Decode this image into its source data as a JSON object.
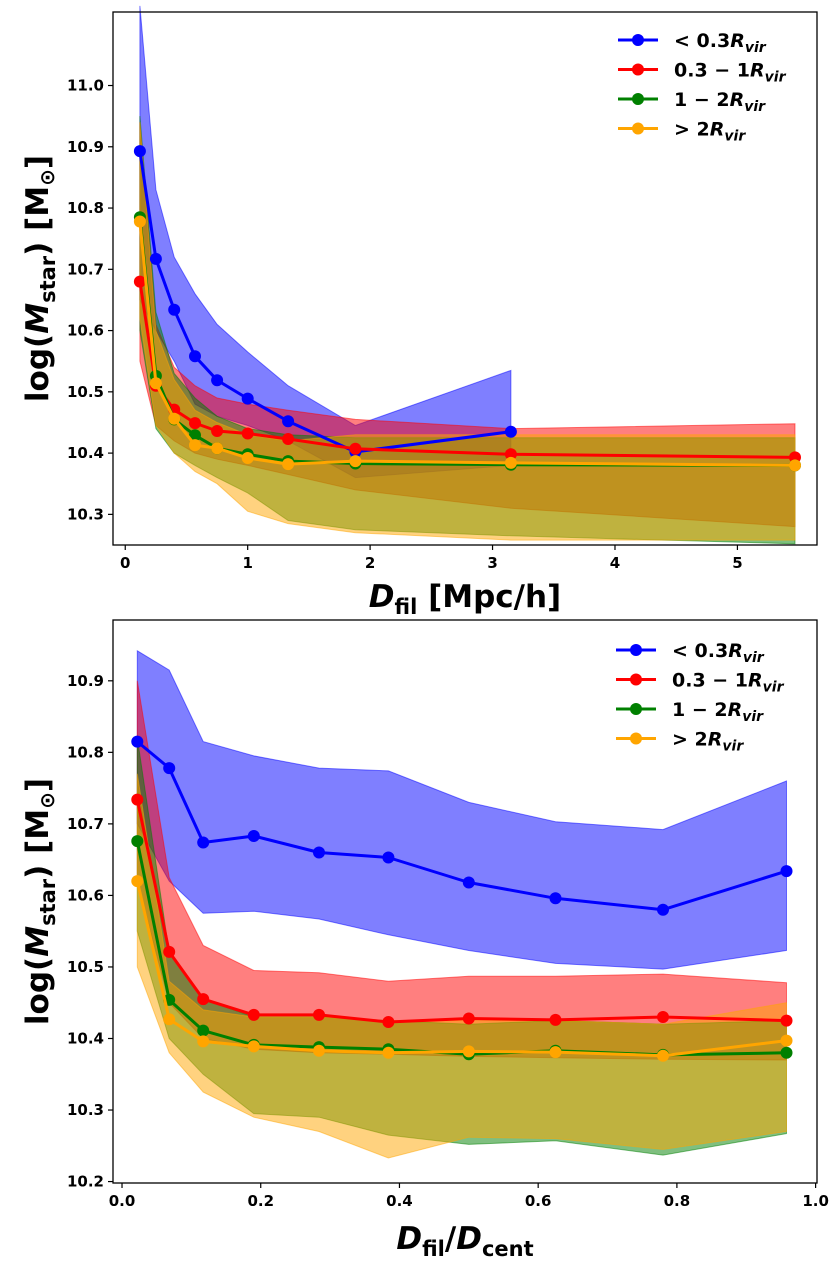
{
  "chart_data": [
    {
      "type": "line",
      "xlabel_sym": "D",
      "xlabel_sub": "fil",
      "xlabel_unit": " [Mpc/h]",
      "ylabel_pre": "log(",
      "ylabel_sym": "M",
      "ylabel_sub": "star",
      "ylabel_post": ") [M",
      "ylabel_sun": "⊙",
      "ylabel_end": "]",
      "xlim": [
        -0.1,
        5.65
      ],
      "ylim": [
        10.25,
        11.12
      ],
      "xticks": [
        "0",
        "1",
        "2",
        "3",
        "4",
        "5"
      ],
      "xtick_values": [
        0,
        1,
        2,
        3,
        4,
        5
      ],
      "yticks": [
        "10.3",
        "10.4",
        "10.5",
        "10.6",
        "10.7",
        "10.8",
        "10.9",
        "11.0"
      ],
      "ytick_values": [
        10.3,
        10.4,
        10.5,
        10.6,
        10.7,
        10.8,
        10.9,
        11.0
      ],
      "legend_position": "top-right",
      "series": [
        {
          "legend_pre": "< 0.3",
          "legend_R": "R",
          "legend_sub": "vir",
          "color": "#0000ff",
          "fill": "#0000ff",
          "x": [
            0.12,
            0.25,
            0.4,
            0.57,
            0.75,
            1.0,
            1.33,
            1.88,
            3.15
          ],
          "y": [
            10.893,
            10.717,
            10.634,
            10.558,
            10.519,
            10.489,
            10.452,
            10.402,
            10.435
          ],
          "upper": [
            11.13,
            10.83,
            10.72,
            10.66,
            10.61,
            10.565,
            10.51,
            10.445,
            10.535
          ],
          "lower": [
            10.65,
            10.6,
            10.55,
            10.48,
            10.46,
            10.445,
            10.42,
            10.36,
            10.38
          ]
        },
        {
          "legend_pre": "0.3 − 1",
          "legend_R": "R",
          "legend_sub": "vir",
          "color": "#ff0000",
          "fill": "#ff0000",
          "x": [
            0.12,
            0.25,
            0.4,
            0.57,
            0.75,
            1.0,
            1.33,
            1.88,
            3.15,
            5.47
          ],
          "y": [
            10.68,
            10.51,
            10.471,
            10.449,
            10.436,
            10.432,
            10.423,
            10.407,
            10.398,
            10.393
          ],
          "upper": [
            10.94,
            10.61,
            10.54,
            10.51,
            10.49,
            10.48,
            10.47,
            10.455,
            10.44,
            10.448
          ],
          "lower": [
            10.55,
            10.445,
            10.42,
            10.4,
            10.39,
            10.38,
            10.365,
            10.34,
            10.31,
            10.28
          ]
        },
        {
          "legend_pre": "1 − 2",
          "legend_R": "R",
          "legend_sub": "vir",
          "color": "#008000",
          "fill": "#008000",
          "x": [
            0.12,
            0.25,
            0.4,
            0.57,
            0.75,
            1.0,
            1.33,
            1.88,
            3.15,
            5.47
          ],
          "y": [
            10.785,
            10.526,
            10.455,
            10.429,
            10.408,
            10.398,
            10.387,
            10.383,
            10.381,
            10.38
          ],
          "upper": [
            10.95,
            10.63,
            10.53,
            10.49,
            10.46,
            10.44,
            10.43,
            10.425,
            10.425,
            10.425
          ],
          "lower": [
            10.6,
            10.44,
            10.4,
            10.38,
            10.36,
            10.335,
            10.29,
            10.275,
            10.265,
            10.252
          ]
        },
        {
          "legend_pre": "> 2",
          "legend_R": "R",
          "legend_sub": "vir",
          "color": "#ffa500",
          "fill": "#ffa500",
          "x": [
            0.12,
            0.25,
            0.4,
            0.57,
            0.75,
            1.0,
            1.33,
            1.88,
            3.15,
            5.47
          ],
          "y": [
            10.778,
            10.514,
            10.456,
            10.413,
            10.408,
            10.392,
            10.382,
            10.387,
            10.384,
            10.38
          ],
          "upper": [
            10.94,
            10.6,
            10.52,
            10.47,
            10.45,
            10.43,
            10.42,
            10.43,
            10.43,
            10.43
          ],
          "lower": [
            10.62,
            10.445,
            10.4,
            10.37,
            10.35,
            10.305,
            10.285,
            10.27,
            10.258,
            10.258
          ]
        }
      ]
    },
    {
      "type": "line",
      "xlabel_sym": "D",
      "xlabel_sub": "fil",
      "xlabel_mid": "/",
      "xlabel_sym2": "D",
      "xlabel_sub2": "cent",
      "ylabel_pre": "log(",
      "ylabel_sym": "M",
      "ylabel_sub": "star",
      "ylabel_post": ") [M",
      "ylabel_sun": "⊙",
      "ylabel_end": "]",
      "xlim": [
        -0.013,
        1.002
      ],
      "ylim": [
        10.198,
        10.985
      ],
      "xticks": [
        "0.0",
        "0.2",
        "0.4",
        "0.6",
        "0.8",
        "1.0"
      ],
      "xtick_values": [
        0.0,
        0.2,
        0.4,
        0.6,
        0.8,
        1.0
      ],
      "yticks": [
        "10.2",
        "10.3",
        "10.4",
        "10.5",
        "10.6",
        "10.7",
        "10.8",
        "10.9"
      ],
      "ytick_values": [
        10.2,
        10.3,
        10.4,
        10.5,
        10.6,
        10.7,
        10.8,
        10.9
      ],
      "legend_position": "top-right",
      "series": [
        {
          "legend_pre": "< 0.3",
          "legend_R": "R",
          "legend_sub": "vir",
          "color": "#0000ff",
          "fill": "#0000ff",
          "x": [
            0.022,
            0.068,
            0.117,
            0.19,
            0.284,
            0.384,
            0.5,
            0.625,
            0.78,
            0.958
          ],
          "y": [
            10.815,
            10.778,
            10.674,
            10.683,
            10.66,
            10.653,
            10.618,
            10.596,
            10.58,
            10.634
          ],
          "upper": [
            10.942,
            10.915,
            10.815,
            10.795,
            10.778,
            10.774,
            10.73,
            10.703,
            10.692,
            10.76
          ],
          "lower": [
            10.7,
            10.62,
            10.575,
            10.578,
            10.567,
            10.545,
            10.523,
            10.505,
            10.497,
            10.523
          ]
        },
        {
          "legend_pre": "0.3 − 1",
          "legend_R": "R",
          "legend_sub": "vir",
          "color": "#ff0000",
          "fill": "#ff0000",
          "x": [
            0.022,
            0.068,
            0.117,
            0.19,
            0.284,
            0.384,
            0.5,
            0.625,
            0.78,
            0.958
          ],
          "y": [
            10.734,
            10.521,
            10.455,
            10.433,
            10.433,
            10.423,
            10.428,
            10.426,
            10.43,
            10.425
          ],
          "upper": [
            10.9,
            10.625,
            10.53,
            10.495,
            10.492,
            10.48,
            10.487,
            10.487,
            10.49,
            10.478
          ],
          "lower": [
            10.62,
            10.45,
            10.4,
            10.385,
            10.38,
            10.378,
            10.375,
            10.373,
            10.371,
            10.37
          ]
        },
        {
          "legend_pre": "1 − 2",
          "legend_R": "R",
          "legend_sub": "vir",
          "color": "#008000",
          "fill": "#008000",
          "x": [
            0.022,
            0.068,
            0.117,
            0.19,
            0.284,
            0.384,
            0.5,
            0.625,
            0.78,
            0.958
          ],
          "y": [
            10.676,
            10.454,
            10.411,
            10.391,
            10.388,
            10.385,
            10.378,
            10.383,
            10.377,
            10.38
          ],
          "upper": [
            10.82,
            10.52,
            10.455,
            10.43,
            10.43,
            10.425,
            10.42,
            10.425,
            10.42,
            10.425
          ],
          "lower": [
            10.55,
            10.4,
            10.35,
            10.295,
            10.29,
            10.265,
            10.252,
            10.257,
            10.237,
            10.267
          ]
        },
        {
          "legend_pre": "> 2",
          "legend_R": "R",
          "legend_sub": "vir",
          "color": "#ffa500",
          "fill": "#ffa500",
          "x": [
            0.022,
            0.068,
            0.117,
            0.19,
            0.284,
            0.384,
            0.5,
            0.625,
            0.78,
            0.958
          ],
          "y": [
            10.62,
            10.427,
            10.396,
            10.389,
            10.383,
            10.38,
            10.382,
            10.381,
            10.376,
            10.397
          ],
          "upper": [
            10.77,
            10.48,
            10.44,
            10.43,
            10.43,
            10.425,
            10.425,
            10.425,
            10.42,
            10.45
          ],
          "lower": [
            10.5,
            10.38,
            10.325,
            10.29,
            10.27,
            10.233,
            10.262,
            10.26,
            10.245,
            10.27
          ]
        }
      ]
    }
  ]
}
